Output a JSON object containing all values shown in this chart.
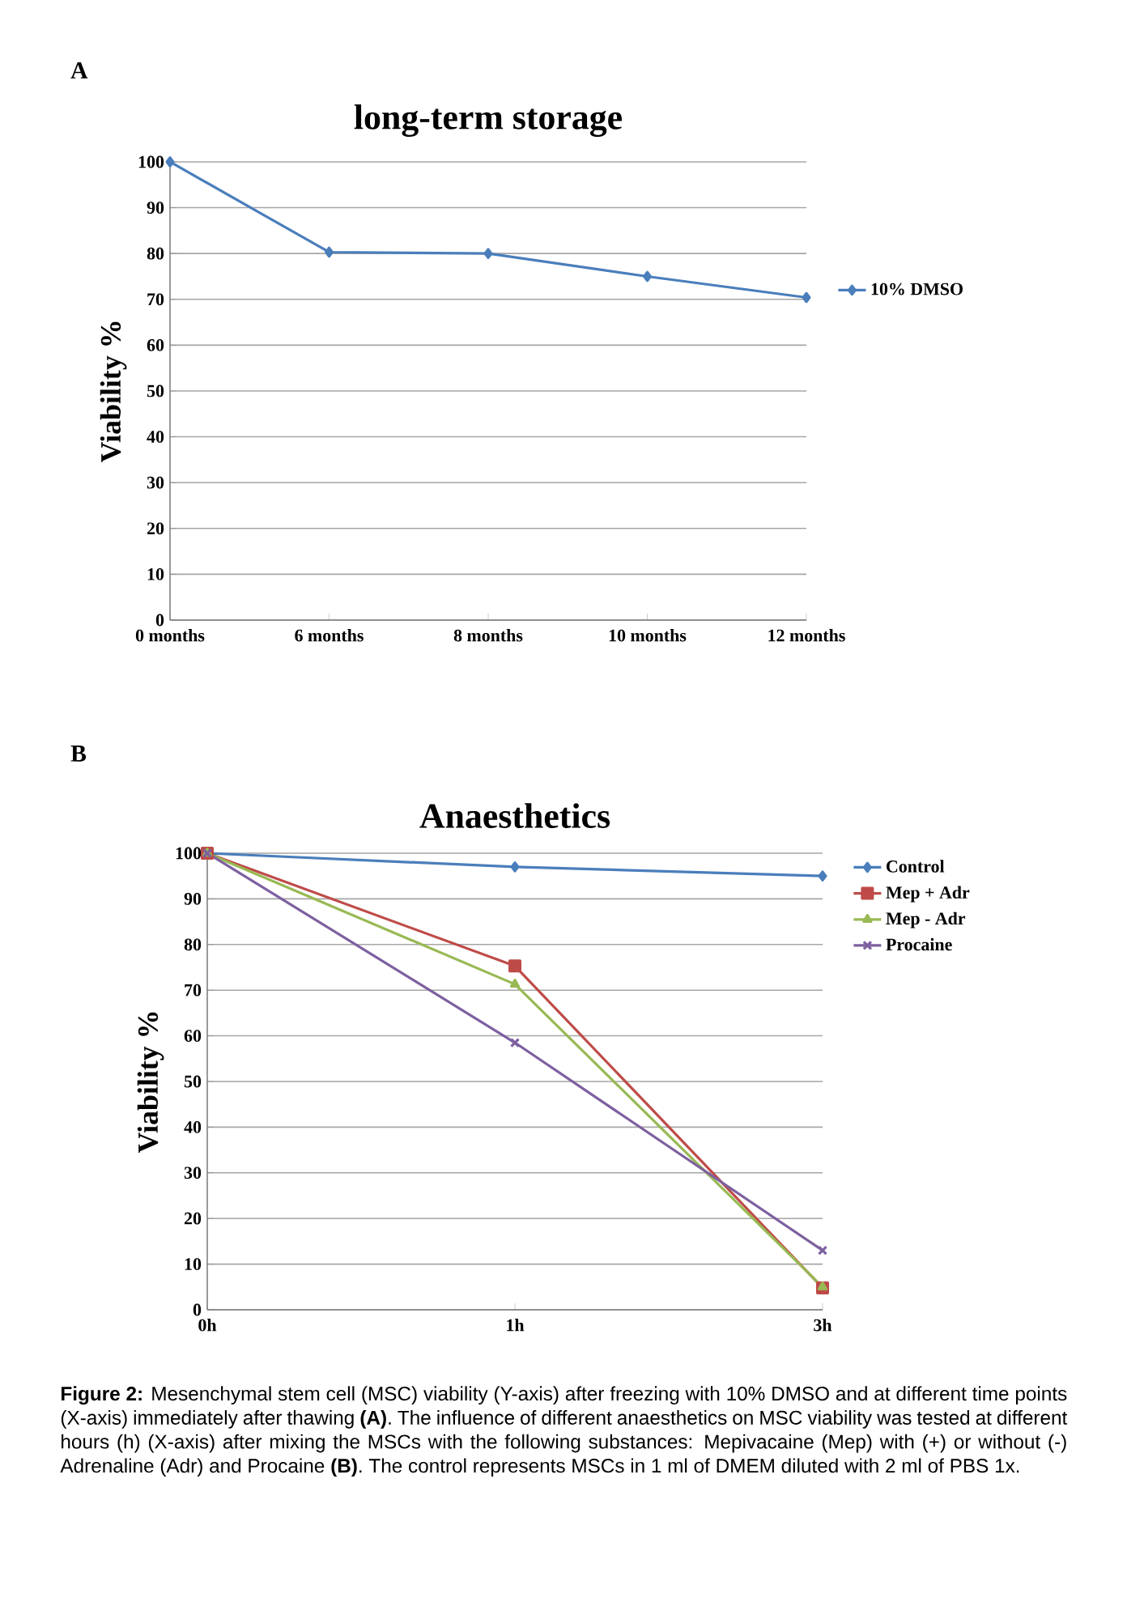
{
  "chart_data": [
    {
      "type": "line",
      "title": "long-term storage",
      "ylabel": "Viability %",
      "annotations": [
        "A"
      ],
      "categories": [
        "0 months",
        "6 months",
        "8 months",
        "10 months",
        "12 months"
      ],
      "series": [
        {
          "name": "10% DMSO",
          "color": "#4a7ebb",
          "marker": "diamond",
          "values": [
            100,
            80.3,
            80,
            75,
            70.4
          ]
        }
      ],
      "ylim": [
        0,
        100
      ],
      "yticks": [
        0,
        10,
        20,
        30,
        40,
        50,
        60,
        70,
        80,
        90,
        100
      ],
      "grid": "y",
      "legend": "right",
      "line_style": "solid"
    },
    {
      "type": "line",
      "title": "Anaesthetics",
      "ylabel": "Viability %",
      "annotations": [
        "B",
        "**Figure 2:** Mesenchymal stem cell (MSC) viability (Y-axis) after freezing with 10% DMSO and at different time points (X-axis) immediately after thawing **(A)**. The influence of different anaesthetics on MSC viability was tested at different hours (h) (X-axis) after mixing the MSCs with the following substances: Mepivacaine (Mep) with (+) or without (-) Adrenaline (Adr) and Procaine **(B)**. The control represents MSCs in 1 ml of DMEM diluted with 2 ml of PBS 1x."
      ],
      "categories": [
        "0h",
        "1h",
        "3h"
      ],
      "series": [
        {
          "name": "Control",
          "color": "#4a7ebb",
          "marker": "diamond",
          "values": [
            100,
            97,
            95
          ]
        },
        {
          "name": "Mep + Adr",
          "color": "#be4b48",
          "marker": "square",
          "values": [
            100,
            75.3,
            4.8
          ]
        },
        {
          "name": "Mep - Adr",
          "color": "#98b954",
          "marker": "triangle",
          "values": [
            100,
            71.3,
            5
          ]
        },
        {
          "name": "Procaine",
          "color": "#7d60a0",
          "marker": "cross",
          "values": [
            100,
            58.5,
            13
          ]
        }
      ],
      "ylim": [
        0,
        100
      ],
      "yticks": [
        0,
        10,
        20,
        30,
        40,
        50,
        60,
        70,
        80,
        90,
        100
      ],
      "grid": "y",
      "legend": "top right",
      "line_style": "solid"
    }
  ]
}
